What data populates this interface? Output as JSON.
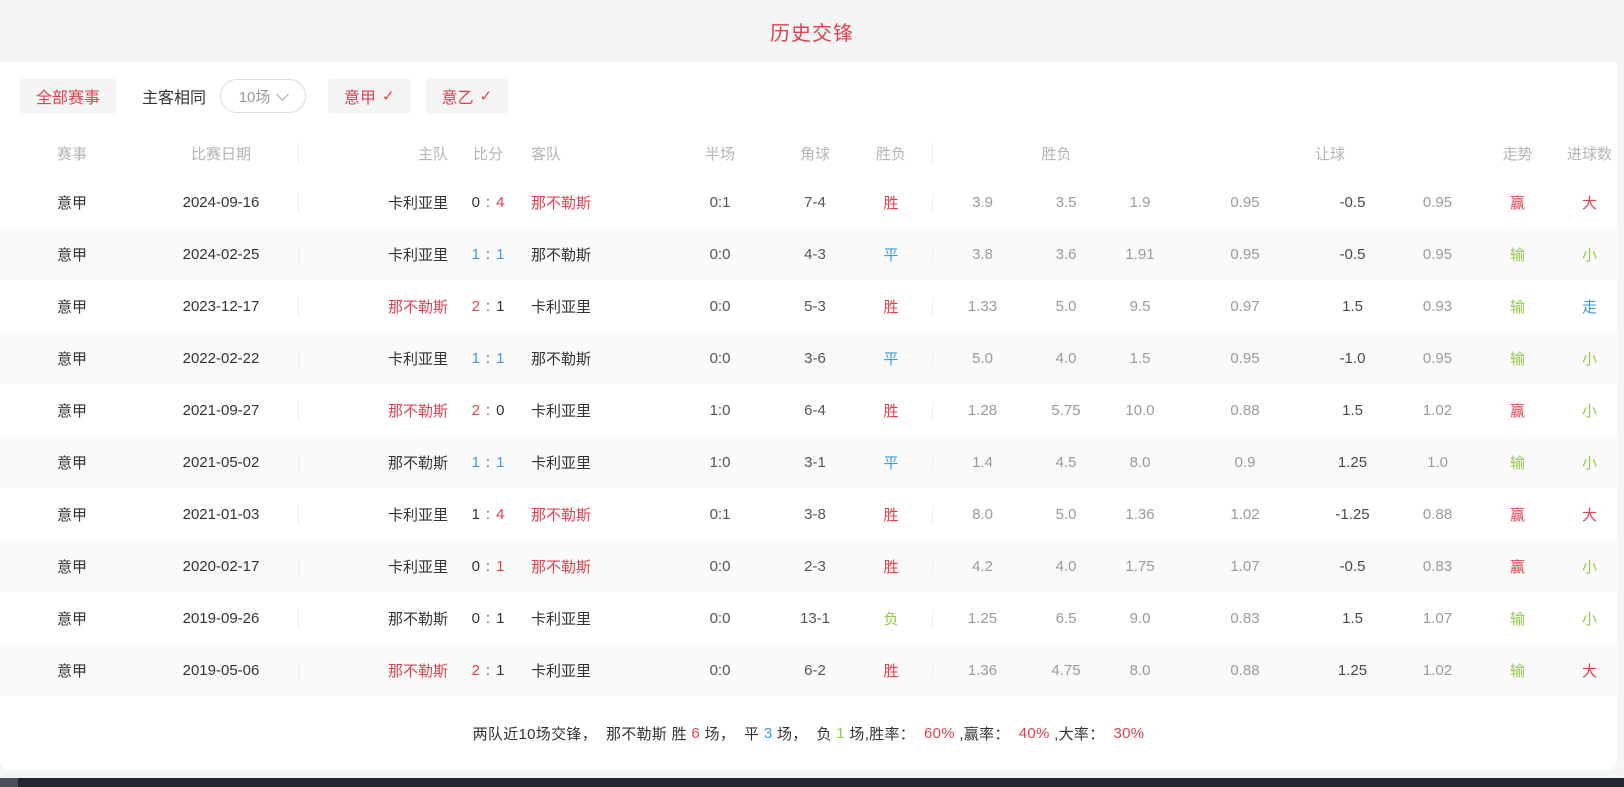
{
  "title": "历史交锋",
  "colors": {
    "red": "#e0414f",
    "blue": "#3d9ae8",
    "green": "#8fce46"
  },
  "filters": {
    "all_matches": "全部赛事",
    "same_home_away": "主客相同",
    "rounds_value": "10场",
    "serie_a": "意甲",
    "serie_b": "意乙",
    "check": "✓"
  },
  "table": {
    "score_separator": ":",
    "headers": {
      "league": "赛事",
      "date": "比赛日期",
      "home": "主队",
      "score": "比分",
      "away": "客队",
      "half": "半场",
      "corner": "角球",
      "result": "胜负",
      "odds_group": "胜负",
      "handicap_group": "让球",
      "trend": "走势",
      "goals": "进球数"
    },
    "rows": [
      {
        "league": "意甲",
        "date": "2024-09-16",
        "home": "卡利亚里",
        "home_class": "dark",
        "sh": "0",
        "sh_class": "dark",
        "sa": "4",
        "sa_class": "red",
        "away": "那不勒斯",
        "away_class": "red",
        "half": "0:1",
        "corner": "7-4",
        "result": "胜",
        "result_class": "red",
        "o1": "3.9",
        "o2": "3.5",
        "o3": "1.9",
        "h1": "0.95",
        "hline": "-0.5",
        "h2": "0.95",
        "trend": "赢",
        "trend_class": "red",
        "goal": "大",
        "goal_class": "red"
      },
      {
        "league": "意甲",
        "date": "2024-02-25",
        "home": "卡利亚里",
        "home_class": "dark",
        "sh": "1",
        "sh_class": "blue",
        "sa": "1",
        "sa_class": "blue",
        "away": "那不勒斯",
        "away_class": "dark",
        "half": "0:0",
        "corner": "4-3",
        "result": "平",
        "result_class": "blue",
        "o1": "3.8",
        "o2": "3.6",
        "o3": "1.91",
        "h1": "0.95",
        "hline": "-0.5",
        "h2": "0.95",
        "trend": "输",
        "trend_class": "green",
        "goal": "小",
        "goal_class": "green"
      },
      {
        "league": "意甲",
        "date": "2023-12-17",
        "home": "那不勒斯",
        "home_class": "red",
        "sh": "2",
        "sh_class": "red",
        "sa": "1",
        "sa_class": "dark",
        "away": "卡利亚里",
        "away_class": "dark",
        "half": "0:0",
        "corner": "5-3",
        "result": "胜",
        "result_class": "red",
        "o1": "1.33",
        "o2": "5.0",
        "o3": "9.5",
        "h1": "0.97",
        "hline": "1.5",
        "h2": "0.93",
        "trend": "输",
        "trend_class": "green",
        "goal": "走",
        "goal_class": "blue"
      },
      {
        "league": "意甲",
        "date": "2022-02-22",
        "home": "卡利亚里",
        "home_class": "dark",
        "sh": "1",
        "sh_class": "blue",
        "sa": "1",
        "sa_class": "blue",
        "away": "那不勒斯",
        "away_class": "dark",
        "half": "0:0",
        "corner": "3-6",
        "result": "平",
        "result_class": "blue",
        "o1": "5.0",
        "o2": "4.0",
        "o3": "1.5",
        "h1": "0.95",
        "hline": "-1.0",
        "h2": "0.95",
        "trend": "输",
        "trend_class": "green",
        "goal": "小",
        "goal_class": "green"
      },
      {
        "league": "意甲",
        "date": "2021-09-27",
        "home": "那不勒斯",
        "home_class": "red",
        "sh": "2",
        "sh_class": "red",
        "sa": "0",
        "sa_class": "dark",
        "away": "卡利亚里",
        "away_class": "dark",
        "half": "1:0",
        "corner": "6-4",
        "result": "胜",
        "result_class": "red",
        "o1": "1.28",
        "o2": "5.75",
        "o3": "10.0",
        "h1": "0.88",
        "hline": "1.5",
        "h2": "1.02",
        "trend": "赢",
        "trend_class": "red",
        "goal": "小",
        "goal_class": "green"
      },
      {
        "league": "意甲",
        "date": "2021-05-02",
        "home": "那不勒斯",
        "home_class": "dark",
        "sh": "1",
        "sh_class": "blue",
        "sa": "1",
        "sa_class": "blue",
        "away": "卡利亚里",
        "away_class": "dark",
        "half": "1:0",
        "corner": "3-1",
        "result": "平",
        "result_class": "blue",
        "o1": "1.4",
        "o2": "4.5",
        "o3": "8.0",
        "h1": "0.9",
        "hline": "1.25",
        "h2": "1.0",
        "trend": "输",
        "trend_class": "green",
        "goal": "小",
        "goal_class": "green"
      },
      {
        "league": "意甲",
        "date": "2021-01-03",
        "home": "卡利亚里",
        "home_class": "dark",
        "sh": "1",
        "sh_class": "dark",
        "sa": "4",
        "sa_class": "red",
        "away": "那不勒斯",
        "away_class": "red",
        "half": "0:1",
        "corner": "3-8",
        "result": "胜",
        "result_class": "red",
        "o1": "8.0",
        "o2": "5.0",
        "o3": "1.36",
        "h1": "1.02",
        "hline": "-1.25",
        "h2": "0.88",
        "trend": "赢",
        "trend_class": "red",
        "goal": "大",
        "goal_class": "red"
      },
      {
        "league": "意甲",
        "date": "2020-02-17",
        "home": "卡利亚里",
        "home_class": "dark",
        "sh": "0",
        "sh_class": "dark",
        "sa": "1",
        "sa_class": "red",
        "away": "那不勒斯",
        "away_class": "red",
        "half": "0:0",
        "corner": "2-3",
        "result": "胜",
        "result_class": "red",
        "o1": "4.2",
        "o2": "4.0",
        "o3": "1.75",
        "h1": "1.07",
        "hline": "-0.5",
        "h2": "0.83",
        "trend": "赢",
        "trend_class": "red",
        "goal": "小",
        "goal_class": "green"
      },
      {
        "league": "意甲",
        "date": "2019-09-26",
        "home": "那不勒斯",
        "home_class": "dark",
        "sh": "0",
        "sh_class": "dark",
        "sa": "1",
        "sa_class": "dark",
        "away": "卡利亚里",
        "away_class": "dark",
        "half": "0:0",
        "corner": "13-1",
        "result": "负",
        "result_class": "green",
        "o1": "1.25",
        "o2": "6.5",
        "o3": "9.0",
        "h1": "0.83",
        "hline": "1.5",
        "h2": "1.07",
        "trend": "输",
        "trend_class": "green",
        "goal": "小",
        "goal_class": "green"
      },
      {
        "league": "意甲",
        "date": "2019-05-06",
        "home": "那不勒斯",
        "home_class": "red",
        "sh": "2",
        "sh_class": "red",
        "sa": "1",
        "sa_class": "dark",
        "away": "卡利亚里",
        "away_class": "dark",
        "half": "0:0",
        "corner": "6-2",
        "result": "胜",
        "result_class": "red",
        "o1": "1.36",
        "o2": "4.75",
        "o3": "8.0",
        "h1": "0.88",
        "hline": "1.25",
        "h2": "1.02",
        "trend": "输",
        "trend_class": "green",
        "goal": "大",
        "goal_class": "red"
      }
    ]
  },
  "summary": {
    "segments": [
      {
        "text": "两队近10场交锋，  那不勒斯 胜 ",
        "class": "dark"
      },
      {
        "text": "6",
        "class": "red"
      },
      {
        "text": " 场，  平 ",
        "class": "dark"
      },
      {
        "text": "3",
        "class": "blue"
      },
      {
        "text": " 场，  负 ",
        "class": "dark"
      },
      {
        "text": "1",
        "class": "green"
      },
      {
        "text": " 场,胜率：  ",
        "class": "dark"
      },
      {
        "text": "60%",
        "class": "red"
      },
      {
        "text": " ,赢率：  ",
        "class": "dark"
      },
      {
        "text": "40%",
        "class": "red"
      },
      {
        "text": " ,大率：  ",
        "class": "dark"
      },
      {
        "text": "30%",
        "class": "red"
      }
    ]
  }
}
